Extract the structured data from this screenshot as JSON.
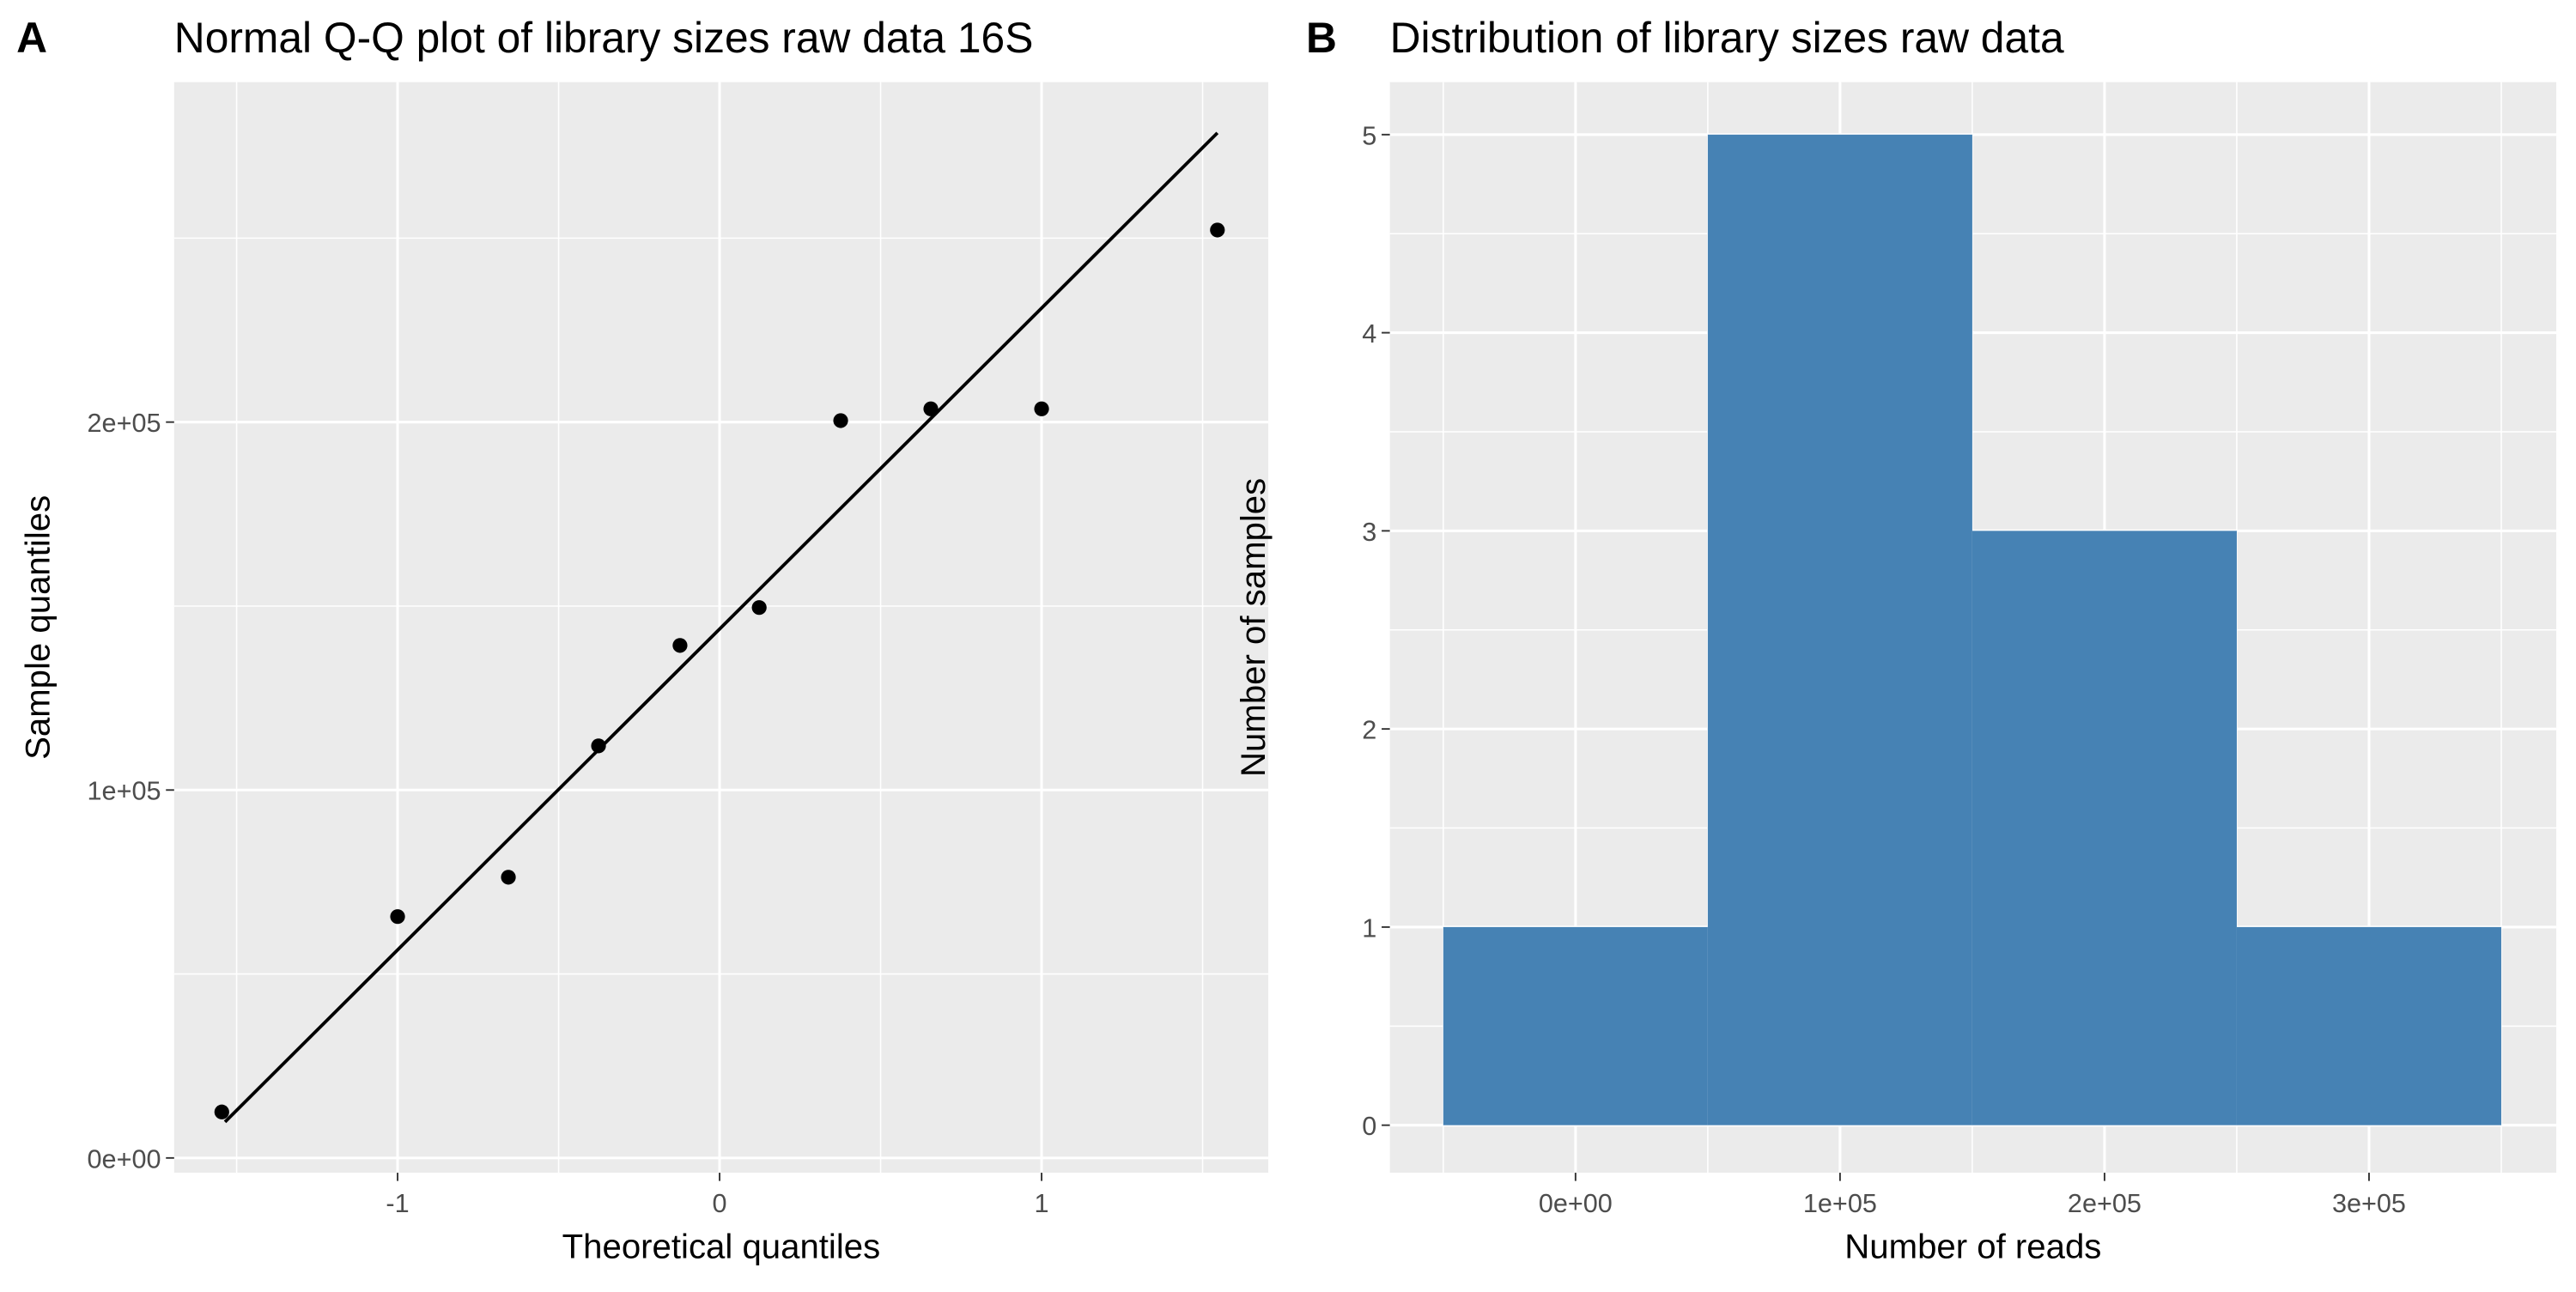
{
  "chart_data": [
    {
      "type": "scatter",
      "tag": "A",
      "title": "Normal Q-Q plot of library sizes raw data 16S",
      "x_label": "Theoretical quantiles",
      "y_label": "Sample quantiles",
      "x": [
        -1.546,
        -1.0,
        -0.656,
        -0.376,
        -0.123,
        0.123,
        0.376,
        0.656,
        1.0,
        1.546
      ],
      "values": [
        12500,
        65600,
        76300,
        112000,
        139300,
        149600,
        200400,
        203600,
        203600,
        252200
      ],
      "color": "#000000",
      "line": {
        "x": [
          -1.536,
          1.546
        ],
        "y": [
          9800,
          278600
        ],
        "color": "#000000"
      },
      "xlim": [
        -1.694,
        1.704
      ],
      "xticks": [
        -1,
        0,
        1
      ],
      "ylim": [
        -4018,
        292400
      ],
      "yticks": [
        {
          "value": 0,
          "label": "0e+00"
        },
        {
          "value": 100000,
          "label": "1e+05"
        },
        {
          "value": 200000,
          "label": "2e+05"
        }
      ],
      "grid": true
    },
    {
      "type": "histogram",
      "tag": "B",
      "title": "Distribution of library sizes raw data",
      "x_label": "Number of reads",
      "y_label": "Number of samples",
      "bins": [
        -50000,
        50000,
        150000,
        250000,
        350000
      ],
      "values": [
        1,
        5,
        3,
        1
      ],
      "color": "#4682b4",
      "xlim": [
        -70200,
        370800
      ],
      "xticks": [
        {
          "value": 0,
          "label": "0e+00"
        },
        {
          "value": 100000,
          "label": "1e+05"
        },
        {
          "value": 200000,
          "label": "2e+05"
        },
        {
          "value": 300000,
          "label": "3e+05"
        }
      ],
      "ylim": [
        -0.24,
        5.265
      ],
      "yticks": [
        0,
        1,
        2,
        3,
        4,
        5
      ],
      "grid": true
    }
  ]
}
